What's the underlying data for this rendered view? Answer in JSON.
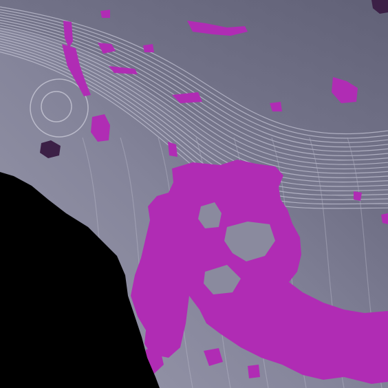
{
  "map": {
    "colors": {
      "land_light": "#8a8a9e",
      "land_mid": "#74748a",
      "land_dark": "#5e5e74",
      "water": "#000000",
      "contour": "#c4c4d4",
      "overlay_magenta": "#b02cb4",
      "overlay_magenta_dark": "#a0209f",
      "overlay_purple": "#3c2046"
    },
    "layers": [
      "terrain-shading",
      "contour-lines",
      "magenta-overlay",
      "dark-purple-spots",
      "water-mask"
    ]
  }
}
